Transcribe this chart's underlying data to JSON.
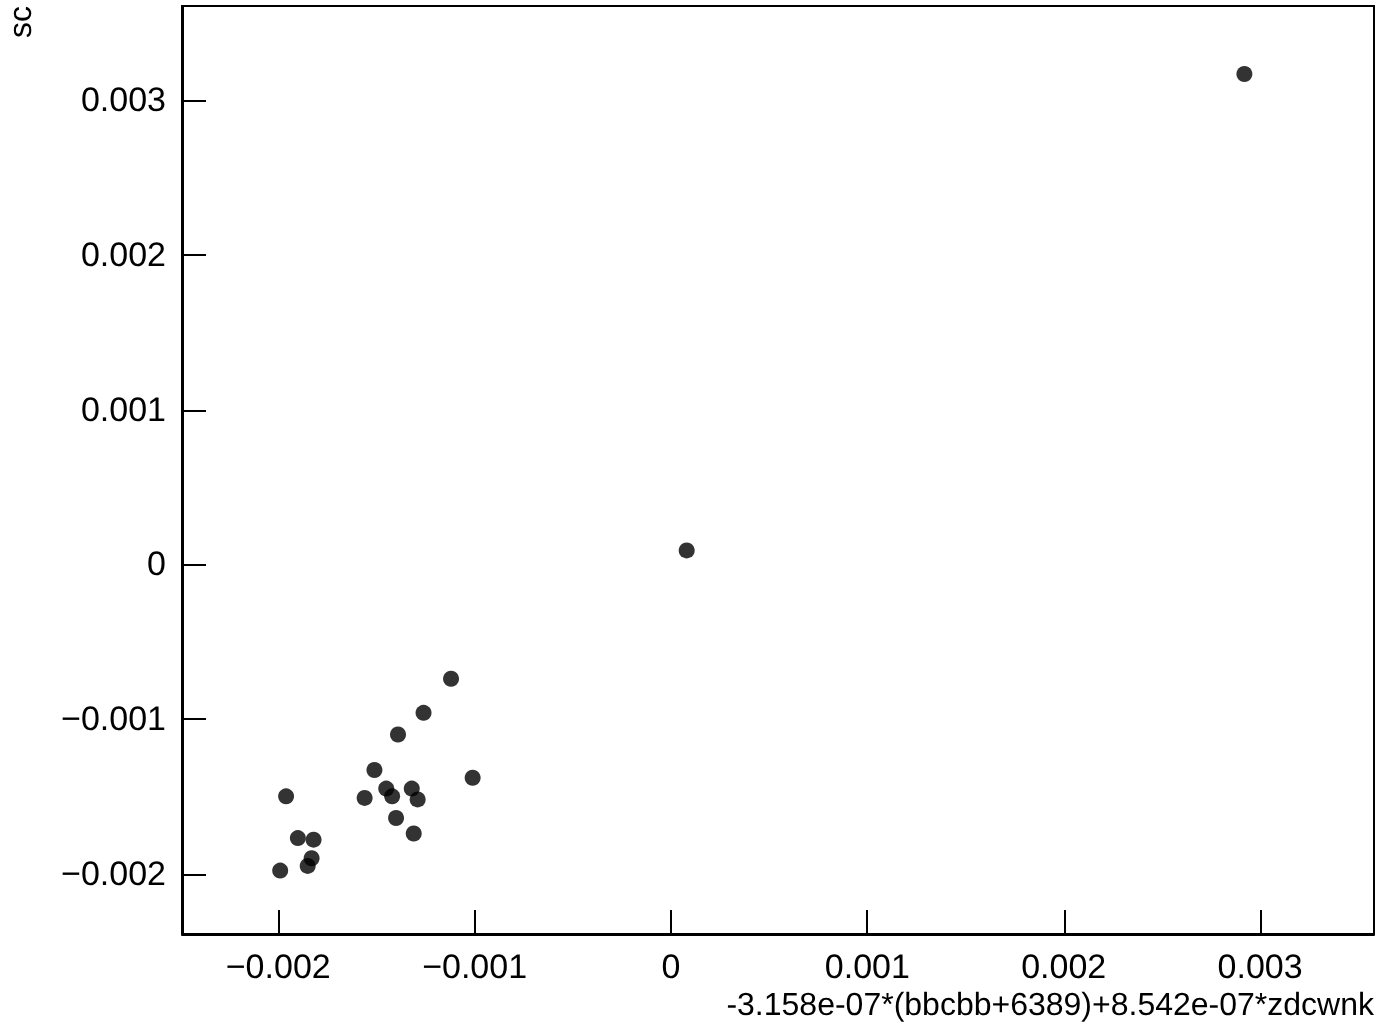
{
  "chart_data": {
    "type": "scatter",
    "xlabel": "-3.158e-07*(bbcbb+6389)+8.542e-07*zdcwnk",
    "ylabel": "sc",
    "x": [
      0.00292,
      8e-05,
      -0.00112,
      -0.00126,
      -0.00139,
      -0.00151,
      -0.00101,
      -0.00196,
      -0.00156,
      -0.00145,
      -0.00142,
      -0.00132,
      -0.00129,
      -0.0014,
      -0.00131,
      -0.0019,
      -0.00182,
      -0.00183,
      -0.00185,
      -0.00199
    ],
    "values": [
      0.00317,
      9e-05,
      -0.00074,
      -0.00096,
      -0.0011,
      -0.00133,
      -0.00138,
      -0.0015,
      -0.00151,
      -0.00145,
      -0.0015,
      -0.00145,
      -0.00152,
      -0.00164,
      -0.00174,
      -0.00177,
      -0.00178,
      -0.0019,
      -0.00195,
      -0.00198
    ],
    "color": "#000000",
    "marker": "circle",
    "grid": false,
    "xlim": [
      -0.00249,
      0.00358
    ],
    "ylim": [
      -0.00239,
      0.00361
    ],
    "xticks": [
      {
        "value": -0.002,
        "label": "−0.002"
      },
      {
        "value": -0.001,
        "label": "−0.001"
      },
      0,
      0.001,
      0.002,
      0.003
    ],
    "yticks": [
      {
        "value": -0.002,
        "label": "−0.002"
      },
      {
        "value": -0.001,
        "label": "−0.001"
      },
      0,
      0.001,
      0.002,
      0.003
    ]
  }
}
